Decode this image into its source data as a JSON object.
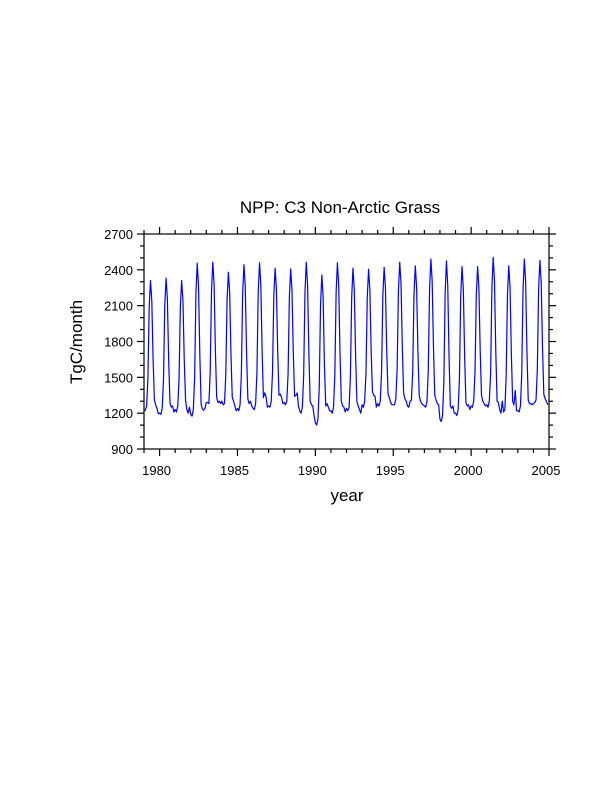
{
  "chart_data": {
    "type": "line",
    "title": "NPP: C3 Non-Arctic Grass",
    "xlabel": "year",
    "ylabel": "TgC/month",
    "xlim": [
      1979,
      2005
    ],
    "ylim": [
      900,
      2700
    ],
    "x_start": 1979,
    "x_step_months": 1,
    "xticks": [
      1980,
      1985,
      1990,
      1995,
      2000,
      2005
    ],
    "xtick_labels": [
      "1980",
      "1985",
      "1990",
      "1995",
      "2000",
      "2005"
    ],
    "yticks": [
      900,
      1200,
      1500,
      1800,
      2100,
      2400,
      2700
    ],
    "ytick_labels": [
      "900",
      "1200",
      "1500",
      "1800",
      "2100",
      "2400",
      "2700"
    ],
    "grid": false,
    "series": [
      {
        "name": "NPP",
        "color": "#0000ff",
        "values": [
          1220,
          1225,
          1260,
          1485,
          2090,
          2310,
          2145,
          1650,
          1310,
          1270,
          1240,
          1195,
          1200,
          1190,
          1240,
          1475,
          2100,
          2330,
          2160,
          1645,
          1290,
          1250,
          1260,
          1210,
          1230,
          1210,
          1260,
          1485,
          2090,
          2310,
          2145,
          1650,
          1310,
          1230,
          1200,
          1250,
          1190,
          1175,
          1230,
          1495,
          2200,
          2455,
          2265,
          1690,
          1275,
          1235,
          1225,
          1240,
          1290,
          1290,
          1280,
          1540,
          2220,
          2464,
          2280,
          1725,
          1330,
          1290,
          1300,
          1280,
          1300,
          1270,
          1280,
          1520,
          2150,
          2380,
          2210,
          1690,
          1330,
          1300,
          1260,
          1220,
          1240,
          1220,
          1270,
          1525,
          2200,
          2443,
          2260,
          1710,
          1320,
          1280,
          1300,
          1260,
          1240,
          1230,
          1280,
          1540,
          2215,
          2460,
          2275,
          1720,
          1330,
          1370,
          1340,
          1250,
          1260,
          1250,
          1300,
          1540,
          2180,
          2413,
          2240,
          1715,
          1350,
          1360,
          1330,
          1280,
          1290,
          1270,
          1300,
          1530,
          2175,
          2407,
          2230,
          1710,
          1340,
          1350,
          1370,
          1260,
          1220,
          1200,
          1250,
          1515,
          2210,
          2464,
          2275,
          1705,
          1300,
          1270,
          1260,
          1180,
          1120,
          1100,
          1150,
          1415,
          2105,
          2357,
          2170,
          1600,
          1260,
          1280,
          1250,
          1220,
          1220,
          1200,
          1250,
          1515,
          2210,
          2460,
          2270,
          1700,
          1300,
          1260,
          1250,
          1210,
          1240,
          1220,
          1250,
          1500,
          2170,
          2413,
          2230,
          1690,
          1300,
          1260,
          1230,
          1200,
          1270,
          1250,
          1300,
          1530,
          2170,
          2405,
          2230,
          1710,
          1380,
          1350,
          1340,
          1250,
          1280,
          1260,
          1300,
          1540,
          2185,
          2421,
          2245,
          1720,
          1360,
          1330,
          1290,
          1270,
          1270,
          1270,
          1320,
          1570,
          2225,
          2464,
          2285,
          1750,
          1370,
          1320,
          1300,
          1260,
          1250,
          1300,
          1310,
          1545,
          2195,
          2433,
          2255,
          1725,
          1350,
          1300,
          1280,
          1270,
          1260,
          1250,
          1300,
          1560,
          2240,
          2490,
          2305,
          1750,
          1350,
          1310,
          1280,
          1270,
          1150,
          1130,
          1180,
          1465,
          2205,
          2474,
          2270,
          1670,
          1260,
          1240,
          1260,
          1200,
          1200,
          1180,
          1230,
          1490,
          2180,
          2427,
          2240,
          1680,
          1290,
          1260,
          1270,
          1230,
          1260,
          1250,
          1300,
          1545,
          2190,
          2427,
          2250,
          1720,
          1350,
          1300,
          1280,
          1260,
          1270,
          1250,
          1300,
          1525,
          2245,
          2505,
          2310,
          1720,
          1300,
          1290,
          1230,
          1200,
          1300,
          1210,
          1230,
          1510,
          2190,
          2433,
          2250,
          1695,
          1300,
          1270,
          1390,
          1220,
          1220,
          1210,
          1260,
          1530,
          2235,
          2490,
          2300,
          1720,
          1310,
          1280,
          1280,
          1270,
          1280,
          1290,
          1310,
          1565,
          2235,
          2479,
          2295,
          1750,
          1360,
          1320,
          1300,
          1270
        ]
      }
    ]
  }
}
